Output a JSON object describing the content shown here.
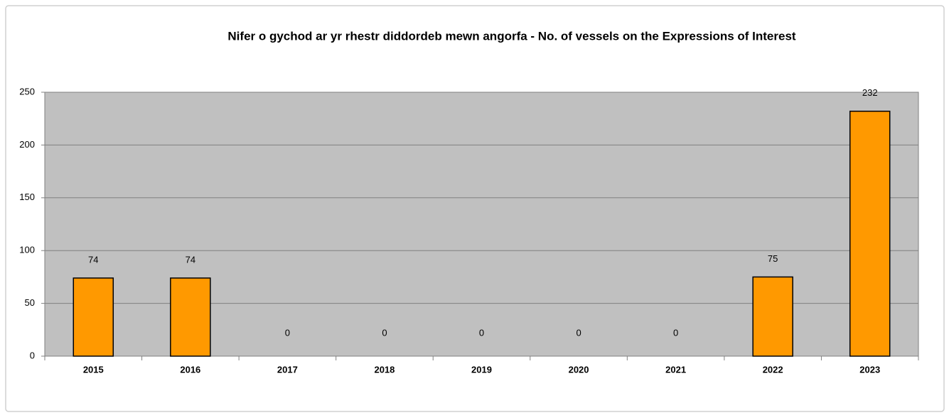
{
  "chart_data": {
    "type": "bar",
    "title": "Nifer o gychod ar yr rhestr diddordeb mewn angorfa  -  No. of vessels on the Expressions of Interest",
    "categories": [
      "2015",
      "2016",
      "2017",
      "2018",
      "2019",
      "2020",
      "2021",
      "2022",
      "2023"
    ],
    "values": [
      74,
      74,
      0,
      0,
      0,
      0,
      0,
      75,
      232
    ],
    "color": "#ff9900",
    "ylim": [
      0,
      250
    ],
    "yticks": [
      0,
      50,
      100,
      150,
      200,
      250
    ],
    "grid": true
  }
}
